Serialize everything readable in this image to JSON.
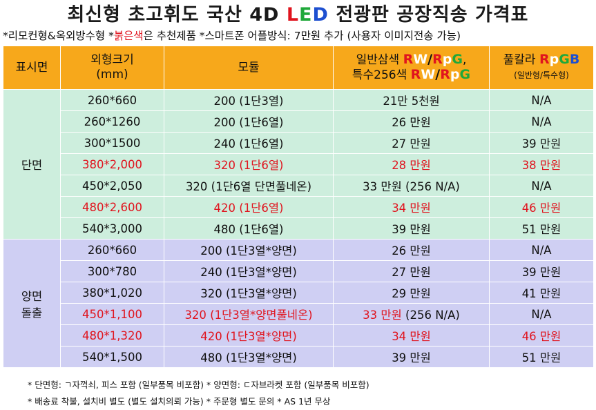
{
  "title": {
    "prefix": "최신형 초고휘도 국산 4D ",
    "L": "L",
    "E": "E",
    "D": "D",
    "suffix": " 전광판 공장직송 가격표"
  },
  "subtitle": {
    "part1": "*리모컨형&옥외방수형 *",
    "red": "붉은색",
    "part2": "은 추천제품 *스마트폰 어플방식: 7만원 추가 (사용자 이미지전송 가능)"
  },
  "headers": {
    "col1": "표시면",
    "col2_line1": "외형크기",
    "col2_line2": "(mm)",
    "col3": "모듈",
    "col4_line1": "일반삼색 ",
    "col4_line2": "특수256색 ",
    "col4_comma": ",",
    "col5_line1": "풀칼라 ",
    "col5_line2": "(일반형/특수형)",
    "tags": {
      "R": "R",
      "W": "W",
      "slash": "/",
      "p": "p",
      "G": "G",
      "B": "B"
    }
  },
  "sections": [
    {
      "label_line1": "단면",
      "label_line2": "",
      "rows": [
        {
          "size": "260*660",
          "module": "200 (1단3열)",
          "three": "21만 5천원",
          "full": "N/A",
          "red": false
        },
        {
          "size": "260*1260",
          "module": "200 (1단6열)",
          "three": "26 만원",
          "full": "N/A",
          "red": false
        },
        {
          "size": "300*1500",
          "module": "240 (1단6열)",
          "three": "27 만원",
          "full": "39 만원",
          "red": false
        },
        {
          "size": "380*2,000",
          "module": "320 (1단6열)",
          "three": "28 만원",
          "full": "38 만원",
          "red": true
        },
        {
          "size": "450*2,050",
          "module": "320 (1단6열 단면풀네온)",
          "three": "33 만원 (256 N/A)",
          "full": "N/A",
          "red": false
        },
        {
          "size": "480*2,600",
          "module": "420 (1단6열)",
          "three": "34 만원",
          "full": "46 만원",
          "red": true
        },
        {
          "size": "540*3,000",
          "module": "480 (1단6열)",
          "three": "39 만원",
          "full": "51 만원",
          "red": false
        }
      ]
    },
    {
      "label_line1": "양면",
      "label_line2": "돌출",
      "rows": [
        {
          "size": "260*660",
          "module": "200 (1단3열*양면)",
          "three": "26 만원",
          "full": "N/A",
          "red": false
        },
        {
          "size": "300*780",
          "module": "240 (1단3열*양면)",
          "three": "27 만원",
          "full": "39 만원",
          "red": false
        },
        {
          "size": "380*1,020",
          "module": "320 (1단3열*양면)",
          "three": "29 만원",
          "full": "41 만원",
          "red": false
        },
        {
          "size": "450*1,100",
          "module": "320 (1단3열*양면풀네온)",
          "three": "33 만원",
          "three_suffix": " (256 N/A)",
          "full": "N/A",
          "red": true
        },
        {
          "size": "480*1,320",
          "module": "420 (1단3열*양면)",
          "three": "34 만원",
          "full": "46 만원",
          "red": true
        },
        {
          "size": "540*1,500",
          "module": "480 (1단3열*양면)",
          "three": "39 만원",
          "full": "51 만원",
          "red": false
        }
      ]
    }
  ],
  "footer": {
    "line1": "* 단면형: ㄱ자꺽쇠, 피스 포함 (일부품목 비포함)  * 양면형: ㄷ자브라켓 포함 (일부품목 비포함)",
    "line2": "* 배송료 착불, 설치비 별도 (별도 설치의뢰 가능)  * 주문형 별도 문의   * AS 1년 무상"
  },
  "colors": {
    "header_bg": "#f7a81b",
    "section1_bg": "#cdeedd",
    "section2_bg": "#cfcff3",
    "accent_red": "#e0141e"
  }
}
